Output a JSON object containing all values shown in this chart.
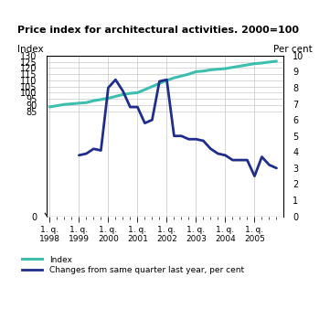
{
  "title": "Price index for architectural activities. 2000=100",
  "ylabel_left": "Index",
  "ylabel_right": "Per cent",
  "ylim_left": [
    0,
    130
  ],
  "ylim_right": [
    0,
    10
  ],
  "yticks_left": [
    0,
    85,
    90,
    95,
    100,
    105,
    110,
    115,
    120,
    125,
    130
  ],
  "yticks_right": [
    0,
    1,
    2,
    3,
    4,
    5,
    6,
    7,
    8,
    9,
    10
  ],
  "index_color": "#3dbfb0",
  "changes_color": "#1f2e8c",
  "background_color": "#ffffff",
  "grid_color": "#c8c8c8",
  "index_data": {
    "x": [
      1998.0,
      1998.25,
      1998.5,
      1998.75,
      1999.0,
      1999.25,
      1999.5,
      1999.75,
      2000.0,
      2000.25,
      2000.5,
      2000.75,
      2001.0,
      2001.25,
      2001.5,
      2001.75,
      2002.0,
      2002.25,
      2002.5,
      2002.75,
      2003.0,
      2003.25,
      2003.5,
      2003.75,
      2004.0,
      2004.25,
      2004.5,
      2004.75,
      2005.0,
      2005.25,
      2005.5,
      2005.75
    ],
    "y": [
      88.5,
      89.5,
      90.5,
      91.0,
      91.5,
      92.0,
      93.5,
      94.5,
      95.5,
      97.0,
      98.5,
      99.5,
      100.0,
      102.5,
      105.0,
      107.5,
      110.0,
      112.0,
      113.5,
      115.0,
      117.0,
      117.5,
      118.5,
      119.0,
      119.5,
      120.5,
      121.5,
      122.5,
      123.5,
      124.0,
      124.8,
      125.5
    ]
  },
  "changes_data": {
    "x": [
      1999.0,
      1999.25,
      1999.5,
      1999.75,
      2000.0,
      2000.25,
      2000.5,
      2000.75,
      2001.0,
      2001.25,
      2001.5,
      2001.75,
      2002.0,
      2002.25,
      2002.5,
      2002.75,
      2003.0,
      2003.25,
      2003.5,
      2003.75,
      2004.0,
      2004.25,
      2004.5,
      2004.75,
      2005.0,
      2005.25,
      2005.5,
      2005.75
    ],
    "y": [
      3.8,
      3.9,
      4.2,
      4.1,
      8.0,
      8.5,
      7.8,
      6.8,
      6.8,
      5.8,
      6.0,
      8.4,
      8.5,
      5.0,
      5.0,
      4.8,
      4.8,
      4.7,
      4.2,
      3.9,
      3.8,
      3.5,
      3.5,
      3.5,
      2.5,
      3.7,
      3.2,
      3.0
    ]
  },
  "xtick_positions": [
    1998.0,
    1999.0,
    2000.0,
    2001.0,
    2002.0,
    2003.0,
    2004.0,
    2005.0
  ],
  "xtick_labels": [
    "1. q.\n1998",
    "1. q.\n1999",
    "1. q.\n2000",
    "1. q.\n2001",
    "1. q.\n2002",
    "1. q.\n2003",
    "1. q.\n2004",
    "1. q.\n2005"
  ],
  "legend_index_label": "Index",
  "legend_changes_label": "Changes from same quarter last year, per cent",
  "index_linewidth": 2.2,
  "changes_linewidth": 2.0,
  "xlim": [
    1997.88,
    2006.0
  ]
}
